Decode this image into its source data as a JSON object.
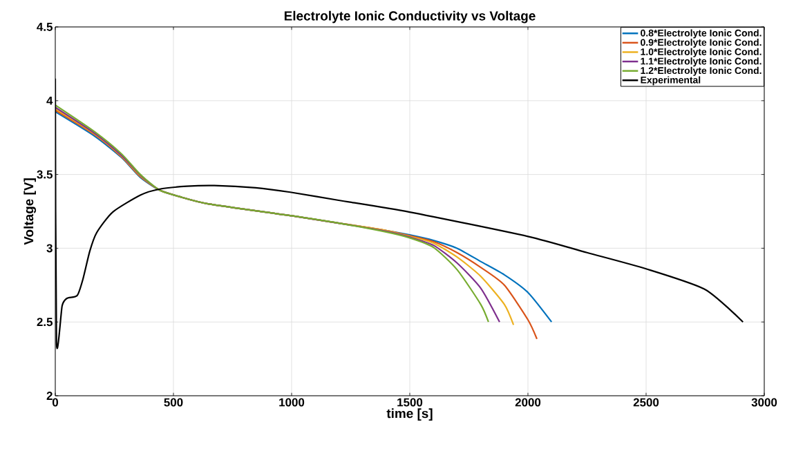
{
  "chart_data": {
    "type": "line",
    "title": "Electrolyte Ionic Conductivity vs Voltage",
    "xlabel": "time [s]",
    "ylabel": "Voltage [V]",
    "xlim": [
      0,
      3000
    ],
    "xticks": [
      0,
      500,
      1000,
      1500,
      2000,
      2500,
      3000
    ],
    "ylim": [
      2,
      4.5
    ],
    "yticks": [
      2,
      2.5,
      3,
      3.5,
      4,
      4.5
    ],
    "grid": true,
    "legend": "top right",
    "line_style": "solid",
    "series": [
      {
        "name": "0.8*Electrolyte Ionic Cond.",
        "color": "#0072bd",
        "x": [
          0,
          166,
          280,
          360,
          440,
          525,
          650,
          1000,
          1200,
          1400,
          1500,
          1600,
          1700,
          1800,
          1900,
          2000,
          2100
        ],
        "values": [
          3.925,
          3.76,
          3.615,
          3.48,
          3.395,
          3.35,
          3.3,
          3.22,
          3.17,
          3.12,
          3.09,
          3.053,
          3.0,
          2.91,
          2.82,
          2.7,
          2.5
        ]
      },
      {
        "name": "0.9*Electrolyte Ionic Cond.",
        "color": "#d95319",
        "x": [
          0,
          166,
          280,
          360,
          440,
          525,
          650,
          1000,
          1200,
          1400,
          1500,
          1600,
          1700,
          1800,
          1900,
          2000,
          2038
        ],
        "values": [
          3.935,
          3.77,
          3.62,
          3.485,
          3.395,
          3.35,
          3.3,
          3.22,
          3.17,
          3.12,
          3.085,
          3.045,
          2.97,
          2.87,
          2.75,
          2.515,
          2.385
        ]
      },
      {
        "name": "1.0*Electrolyte Ionic Cond.",
        "color": "#edb120",
        "x": [
          0,
          166,
          280,
          360,
          440,
          525,
          650,
          1000,
          1200,
          1400,
          1500,
          1600,
          1700,
          1800,
          1900,
          1939
        ],
        "values": [
          3.945,
          3.775,
          3.625,
          3.49,
          3.395,
          3.35,
          3.3,
          3.22,
          3.17,
          3.12,
          3.08,
          3.035,
          2.94,
          2.81,
          2.62,
          2.48
        ]
      },
      {
        "name": "1.1*Electrolyte Ionic Cond.",
        "color": "#7e2f8e",
        "x": [
          0,
          166,
          280,
          360,
          440,
          525,
          650,
          1000,
          1200,
          1400,
          1500,
          1600,
          1700,
          1800,
          1880
        ],
        "values": [
          3.955,
          3.78,
          3.63,
          3.495,
          3.395,
          3.35,
          3.3,
          3.22,
          3.17,
          3.115,
          3.075,
          3.02,
          2.9,
          2.73,
          2.5
        ]
      },
      {
        "name": "1.2*Electrolyte Ionic Cond.",
        "color": "#77ac30",
        "x": [
          0,
          166,
          280,
          360,
          440,
          525,
          650,
          1000,
          1200,
          1400,
          1500,
          1600,
          1700,
          1800,
          1833
        ],
        "values": [
          3.97,
          3.79,
          3.64,
          3.5,
          3.395,
          3.35,
          3.3,
          3.22,
          3.17,
          3.11,
          3.07,
          3.006,
          2.855,
          2.62,
          2.5
        ]
      },
      {
        "name": "Experimental",
        "color": "#000000",
        "x": [
          0,
          5,
          29,
          49,
          93,
          117,
          146,
          175,
          243,
          360,
          439,
          556,
          673,
          848,
          994,
          1199,
          1500,
          2000,
          2250,
          2500,
          2750,
          2910
        ],
        "values": [
          4.15,
          2.365,
          2.61,
          2.66,
          2.68,
          2.79,
          2.98,
          3.105,
          3.245,
          3.36,
          3.4,
          3.42,
          3.425,
          3.41,
          3.38,
          3.325,
          3.245,
          3.08,
          2.97,
          2.86,
          2.72,
          2.5
        ]
      }
    ]
  }
}
